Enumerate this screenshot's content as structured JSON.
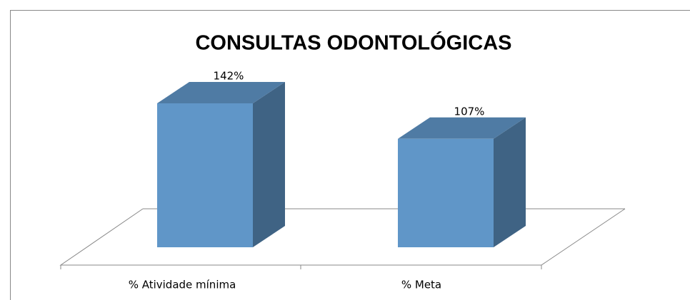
{
  "chart_data": {
    "type": "bar3d",
    "title": "CONSULTAS ODONTOLÓGICAS",
    "categories": [
      "% Atividade mínima",
      "% Meta"
    ],
    "values": [
      142,
      107
    ],
    "value_labels": [
      "142%",
      "107%"
    ],
    "color": "#6096c8"
  }
}
